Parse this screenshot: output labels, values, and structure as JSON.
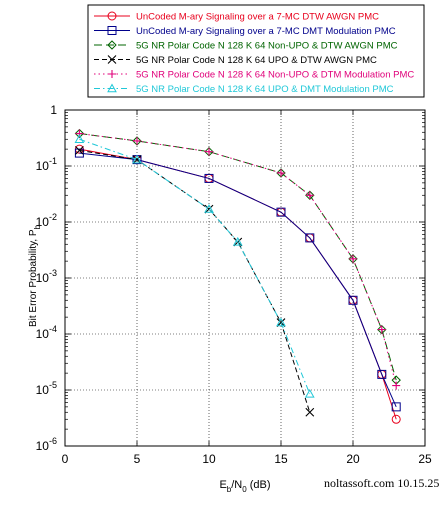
{
  "chart_data": {
    "type": "line",
    "title": "",
    "xlabel": "E_b/N_0 (dB)",
    "xlabel_parts": {
      "main": "E",
      "sub1": "b",
      "mid": "/N",
      "sub2": "0",
      "unit": " (dB)"
    },
    "ylabel": "Bit Error Probability, P_b",
    "ylabel_parts": {
      "main": "Bit Error Probability, P",
      "sub": "b"
    },
    "xlim": [
      0,
      25
    ],
    "ylim": [
      1e-06,
      1
    ],
    "yscale": "log",
    "grid": true,
    "legend_position": "top",
    "x_ticks": [
      {
        "value": 0,
        "label": "0"
      },
      {
        "value": 5,
        "label": "5"
      },
      {
        "value": 10,
        "label": "10"
      },
      {
        "value": 15,
        "label": "15"
      },
      {
        "value": 20,
        "label": "20"
      },
      {
        "value": 25,
        "label": "25"
      }
    ],
    "y_ticks": [
      {
        "value": 1,
        "base": "1",
        "exp": ""
      },
      {
        "value": 0.1,
        "base": "10",
        "exp": "-1"
      },
      {
        "value": 0.01,
        "base": "10",
        "exp": "-2"
      },
      {
        "value": 0.001,
        "base": "10",
        "exp": "-3"
      },
      {
        "value": 0.0001,
        "base": "10",
        "exp": "-4"
      },
      {
        "value": 1e-05,
        "base": "10",
        "exp": "-5"
      },
      {
        "value": 1e-06,
        "base": "10",
        "exp": "-6"
      }
    ],
    "series": [
      {
        "name": "UnCoded M-ary Signaling over a 7-MC DTW AWGN PMC",
        "color": "#e8001c",
        "dash": "solid",
        "marker": "circle",
        "x": [
          1,
          5,
          10,
          15,
          17,
          20,
          22,
          23
        ],
        "y": [
          0.2,
          0.13,
          0.06,
          0.015,
          0.0052,
          0.0004,
          1.9e-05,
          3e-06
        ]
      },
      {
        "name": "UnCoded M-ary Signaling over a 7-MC DMT Modulation PMC",
        "color": "#00008b",
        "dash": "solid",
        "marker": "square",
        "x": [
          1,
          5,
          10,
          15,
          17,
          20,
          22,
          23
        ],
        "y": [
          0.17,
          0.13,
          0.06,
          0.015,
          0.0052,
          0.0004,
          1.9e-05,
          5e-06
        ]
      },
      {
        "name": "5G NR Polar Code N 128 K 64 Non-UPO & DTW AWGN PMC",
        "color": "#006400",
        "dash": "long",
        "marker": "diamond",
        "x": [
          1,
          5,
          10,
          15,
          17,
          20,
          22,
          23
        ],
        "y": [
          0.38,
          0.28,
          0.18,
          0.075,
          0.03,
          0.0022,
          0.00012,
          1.5e-05
        ]
      },
      {
        "name": "5G NR Polar Code N 128 K 64 UPO & DTW AWGN PMC",
        "color": "#000000",
        "dash": "dash",
        "marker": "x",
        "x": [
          1,
          5,
          10,
          12,
          15,
          17
        ],
        "y": [
          0.19,
          0.13,
          0.017,
          0.0044,
          0.00016,
          4e-06
        ]
      },
      {
        "name": "5G NR Polar Code N 128 K 64 Non-UPO & DTM Modulation PMC",
        "color": "#e0007a",
        "dash": "dot",
        "marker": "plus",
        "x": [
          1,
          5,
          10,
          15,
          17,
          20,
          22,
          23
        ],
        "y": [
          0.38,
          0.28,
          0.18,
          0.075,
          0.03,
          0.0022,
          0.00012,
          1.2e-05
        ]
      },
      {
        "name": "5G NR Polar Code N 128 K 64 UPO & DMT Modulation PMC",
        "color": "#20c8d8",
        "dash": "dashdot",
        "marker": "triangle",
        "x": [
          1,
          5,
          10,
          12,
          15,
          17
        ],
        "y": [
          0.3,
          0.13,
          0.017,
          0.0044,
          0.00016,
          8.5e-06
        ]
      }
    ]
  },
  "watermark": "noltassoft.com 10.15.25"
}
